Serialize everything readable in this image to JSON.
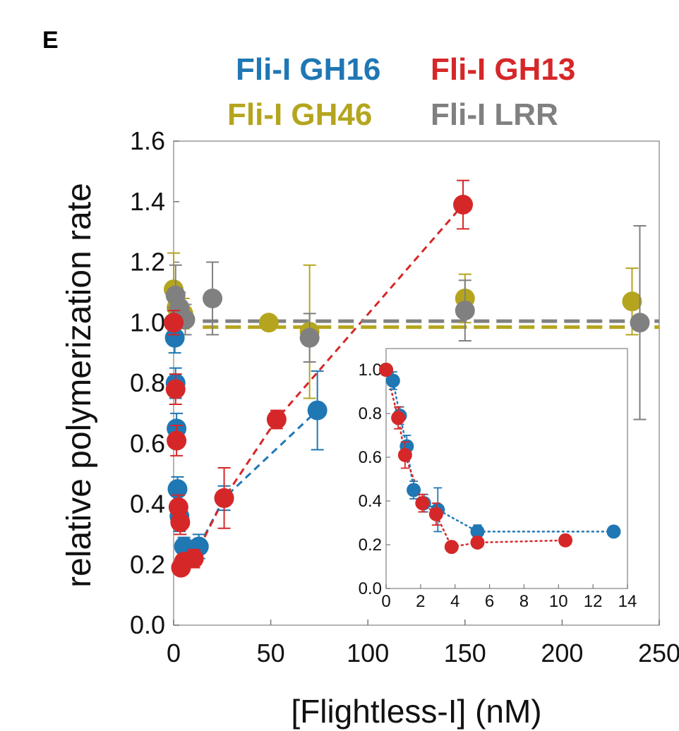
{
  "panel_label": "E",
  "chart_data": {
    "type": "scatter",
    "xlabel": "[Flightless-I] (nM)",
    "ylabel": "relative polymerization rate",
    "xlim": [
      0,
      250
    ],
    "ylim": [
      0,
      1.6
    ],
    "xticks": [
      "0",
      "50",
      "100",
      "150",
      "200",
      "250"
    ],
    "yticks": [
      "0.0",
      "0.2",
      "0.4",
      "0.6",
      "0.8",
      "1.0",
      "1.2",
      "1.4",
      "1.6"
    ],
    "legend_placement": "top, above plot, two rows",
    "series": [
      {
        "name": "Fli-I GH16",
        "color": "#1f77b4",
        "line": "dashed",
        "points": [
          {
            "x": 0,
            "y": 1.0,
            "err": 0.04
          },
          {
            "x": 0.6,
            "y": 0.95,
            "err": 0.05
          },
          {
            "x": 1.0,
            "y": 0.8,
            "err": 0.05
          },
          {
            "x": 1.5,
            "y": 0.65,
            "err": 0.05
          },
          {
            "x": 2.0,
            "y": 0.45,
            "err": 0.04
          },
          {
            "x": 3.0,
            "y": 0.36,
            "err": 0.05
          },
          {
            "x": 5.3,
            "y": 0.26,
            "err": 0.03
          },
          {
            "x": 13.0,
            "y": 0.26,
            "err": 0.04
          },
          {
            "x": 26.0,
            "y": 0.42,
            "err": 0.04
          },
          {
            "x": 74.0,
            "y": 0.71,
            "err": 0.13
          }
        ]
      },
      {
        "name": "Fli-I GH13",
        "color": "#d62728",
        "line": "dashed",
        "points": [
          {
            "x": 0,
            "y": 1.0,
            "err": 0.04
          },
          {
            "x": 1.0,
            "y": 0.78,
            "err": 0.05
          },
          {
            "x": 1.5,
            "y": 0.61,
            "err": 0.05
          },
          {
            "x": 2.5,
            "y": 0.39,
            "err": 0.04
          },
          {
            "x": 3.4,
            "y": 0.34,
            "err": 0.04
          },
          {
            "x": 3.8,
            "y": 0.19,
            "err": 0.02
          },
          {
            "x": 5.3,
            "y": 0.21,
            "err": 0.02
          },
          {
            "x": 10.4,
            "y": 0.22,
            "err": 0.03
          },
          {
            "x": 26.0,
            "y": 0.42,
            "err": 0.1
          },
          {
            "x": 53.0,
            "y": 0.68,
            "err": 0.03
          },
          {
            "x": 149.0,
            "y": 1.39,
            "err": 0.08
          }
        ]
      },
      {
        "name": "Fli-I GH46",
        "color": "#b5a51e",
        "line": "dashed",
        "points": [
          {
            "x": 0,
            "y": 1.11,
            "err": 0.12
          },
          {
            "x": 1.5,
            "y": 1.05,
            "err": 0.06
          },
          {
            "x": 5.0,
            "y": 1.03,
            "err": 0.05
          },
          {
            "x": 49.0,
            "y": 1.0,
            "err": 0.02
          },
          {
            "x": 70.0,
            "y": 0.97,
            "err": 0.22
          },
          {
            "x": 150.0,
            "y": 1.08,
            "err": 0.08
          },
          {
            "x": 236.0,
            "y": 1.07,
            "err": 0.11
          }
        ]
      },
      {
        "name": "Fli-I LRR",
        "color": "#808080",
        "line": "dashed",
        "points": [
          {
            "x": 0,
            "y": 1.0,
            "err": 0.05
          },
          {
            "x": 1.0,
            "y": 1.09,
            "err": 0.1
          },
          {
            "x": 3.0,
            "y": 1.05,
            "err": 0.05
          },
          {
            "x": 6.0,
            "y": 1.01,
            "err": 0.05
          },
          {
            "x": 20.0,
            "y": 1.08,
            "err": 0.12
          },
          {
            "x": 70.0,
            "y": 0.95,
            "err": 0.08
          },
          {
            "x": 150.0,
            "y": 1.04,
            "err": 0.1
          },
          {
            "x": 240.0,
            "y": 1.0,
            "err": 0.32
          }
        ]
      }
    ],
    "inset": {
      "type": "scatter",
      "xlim": [
        0,
        14
      ],
      "ylim": [
        0,
        1.0
      ],
      "xticks": [
        "0",
        "2",
        "4",
        "6",
        "8",
        "10",
        "12",
        "14"
      ],
      "yticks": [
        "0.0",
        "0.2",
        "0.4",
        "0.6",
        "0.8",
        "1.0"
      ],
      "series": [
        {
          "name": "Fli-I GH16",
          "color": "#1f77b4",
          "line": "dotted",
          "points": [
            {
              "x": 0,
              "y": 1.0,
              "err": 0.02
            },
            {
              "x": 0.4,
              "y": 0.95,
              "err": 0.04
            },
            {
              "x": 0.8,
              "y": 0.79,
              "err": 0.04
            },
            {
              "x": 1.2,
              "y": 0.65,
              "err": 0.05
            },
            {
              "x": 1.6,
              "y": 0.45,
              "err": 0.04
            },
            {
              "x": 2.2,
              "y": 0.39,
              "err": 0.04
            },
            {
              "x": 3.0,
              "y": 0.36,
              "err": 0.1
            },
            {
              "x": 5.3,
              "y": 0.26,
              "err": 0.03
            },
            {
              "x": 13.2,
              "y": 0.26,
              "err": 0.02
            }
          ]
        },
        {
          "name": "Fli-I GH13",
          "color": "#d62728",
          "line": "dotted",
          "points": [
            {
              "x": 0,
              "y": 1.0,
              "err": 0.02
            },
            {
              "x": 0.7,
              "y": 0.78,
              "err": 0.05
            },
            {
              "x": 1.1,
              "y": 0.61,
              "err": 0.06
            },
            {
              "x": 2.1,
              "y": 0.39,
              "err": 0.04
            },
            {
              "x": 2.9,
              "y": 0.34,
              "err": 0.05
            },
            {
              "x": 3.8,
              "y": 0.19,
              "err": 0.02
            },
            {
              "x": 5.3,
              "y": 0.21,
              "err": 0.02
            },
            {
              "x": 10.4,
              "y": 0.22,
              "err": 0.02
            }
          ]
        }
      ]
    }
  }
}
